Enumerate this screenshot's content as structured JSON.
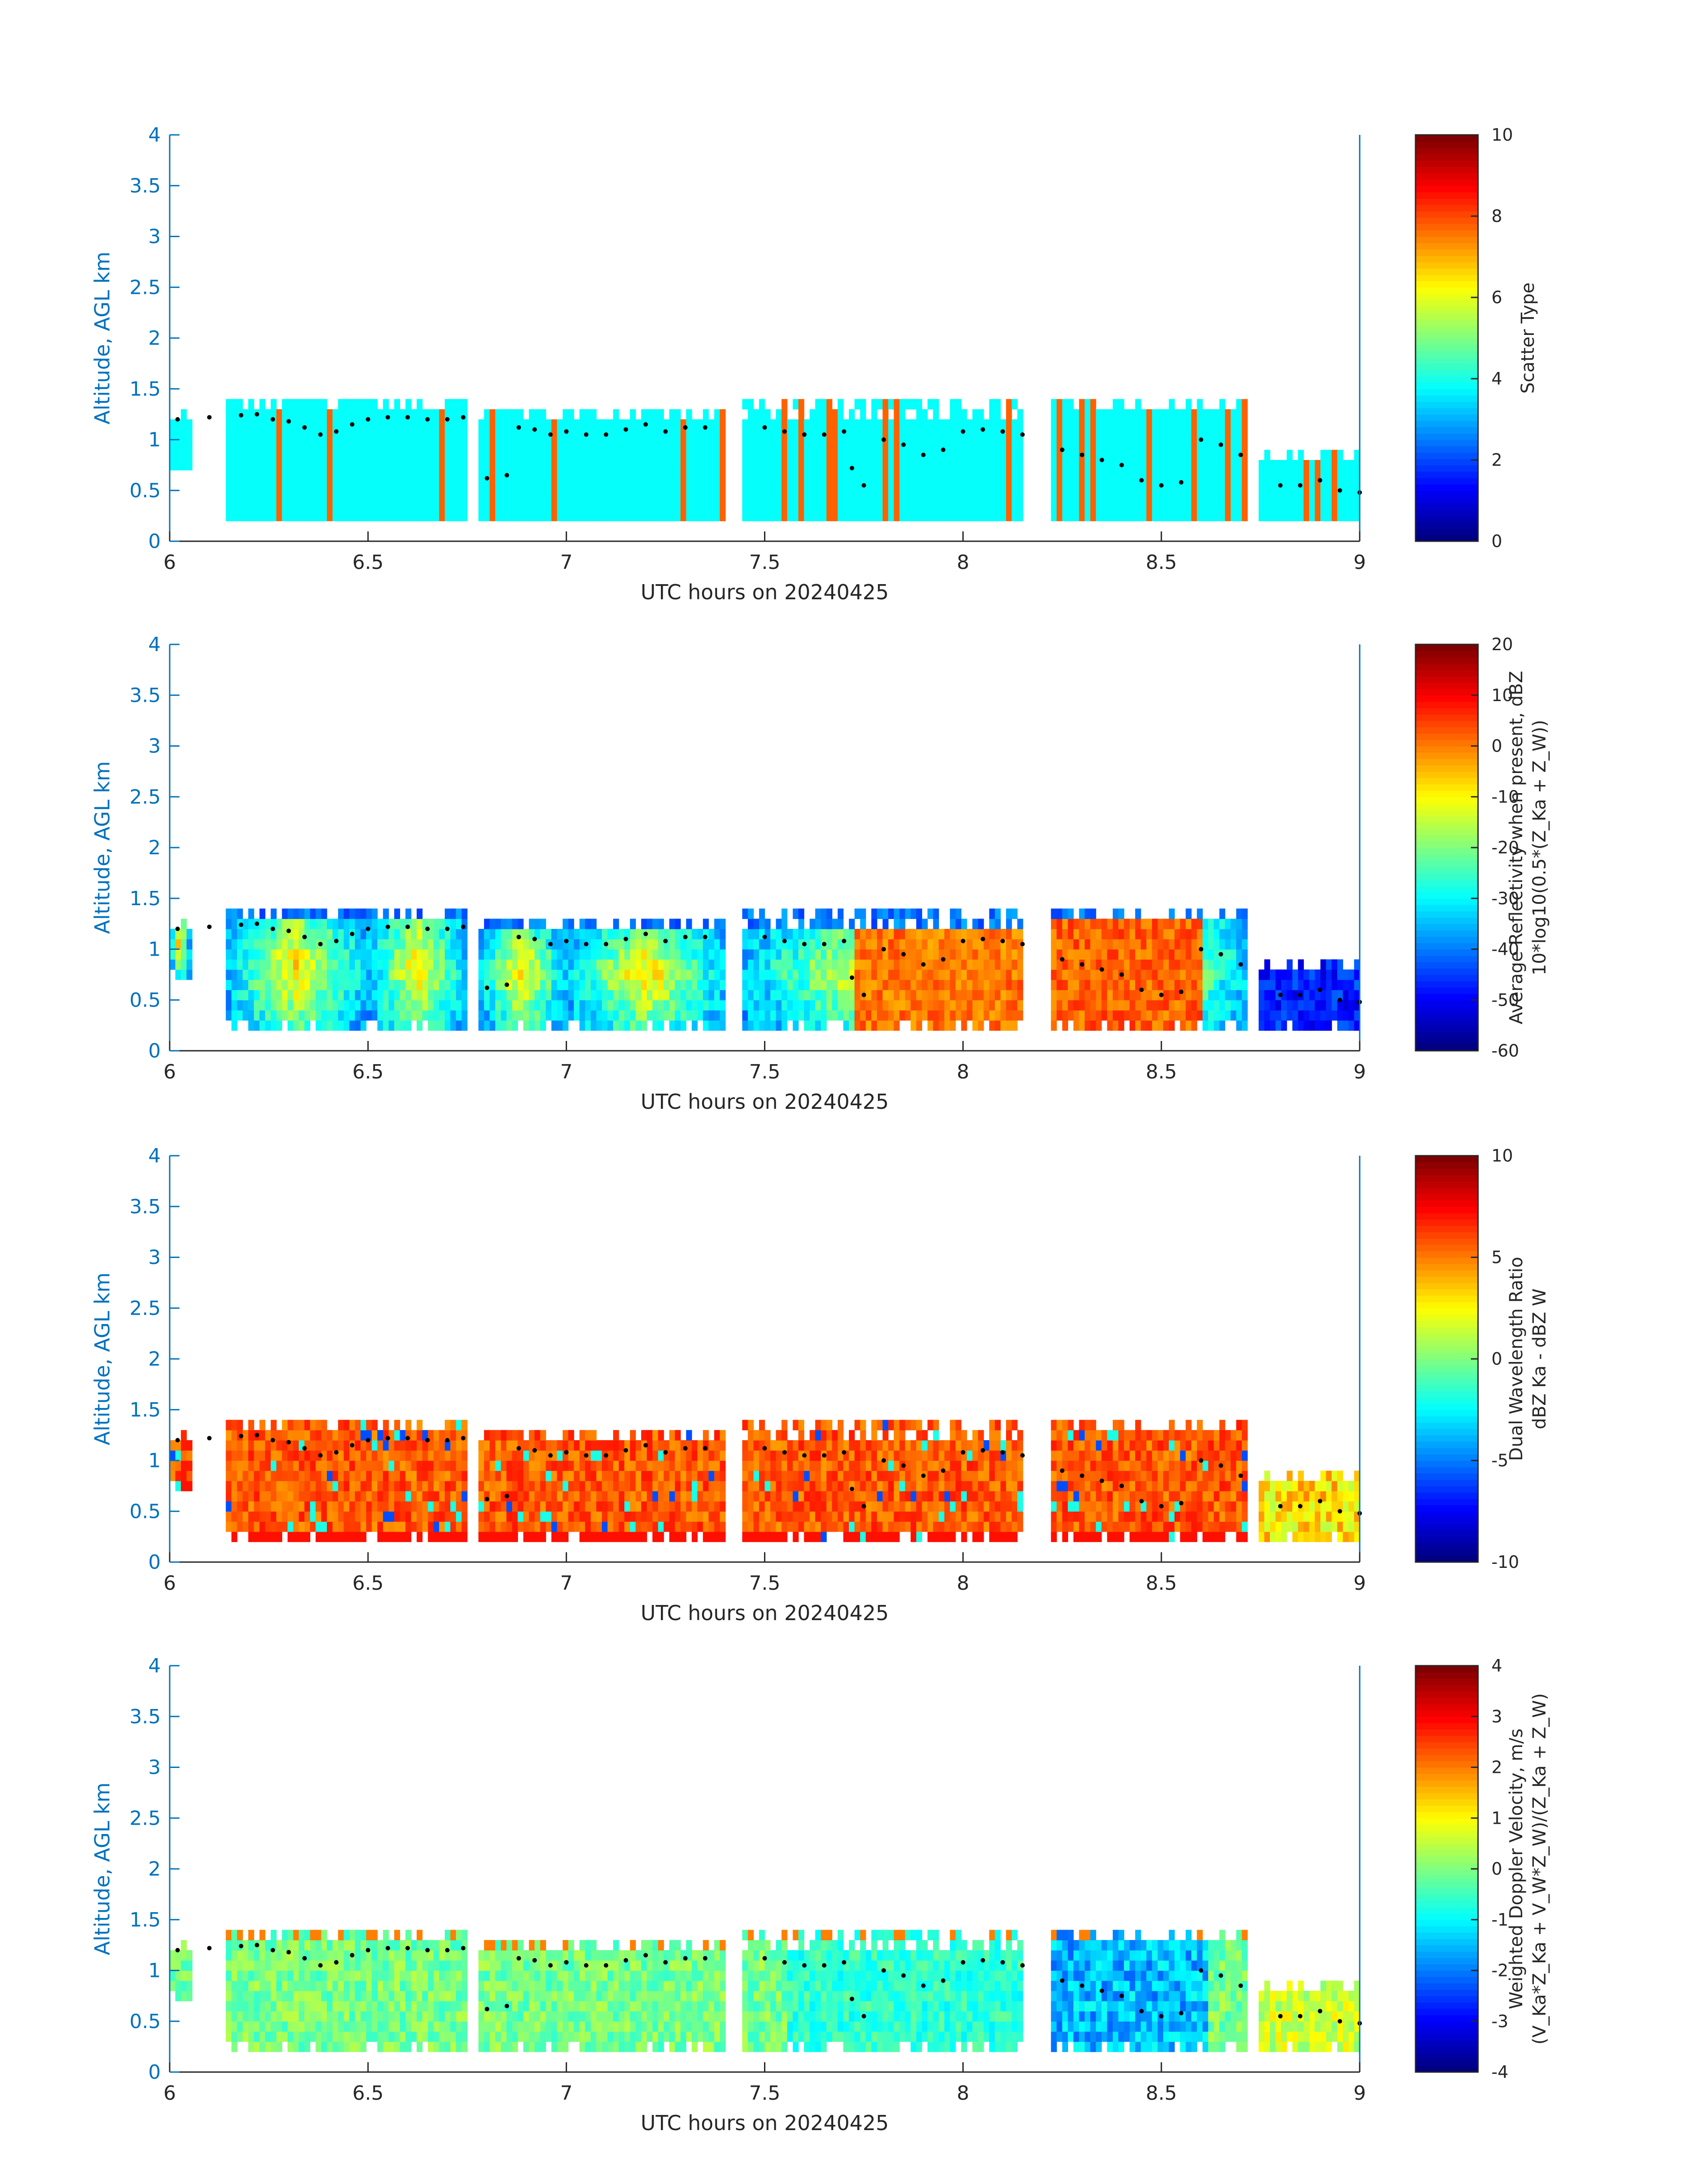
{
  "chart_data": [
    {
      "type": "heatmap",
      "panel": 1,
      "xlabel": "UTC hours on 20240425",
      "ylabel": "Altitude, AGL km",
      "xlim": [
        6,
        9
      ],
      "ylim": [
        0,
        4
      ],
      "xticks": [
        "6",
        "6.5",
        "7",
        "7.5",
        "8",
        "8.5",
        "9"
      ],
      "yticks": [
        "0",
        "0.5",
        "1",
        "1.5",
        "2",
        "2.5",
        "3",
        "3.5",
        "4"
      ],
      "colorbar": {
        "label_lines": [
          "Scatter Type"
        ],
        "range": [
          0,
          10
        ],
        "ticks": [
          "0",
          "2",
          "4",
          "6",
          "8",
          "10"
        ],
        "colormap": "jet"
      },
      "field": "scatter_type"
    },
    {
      "type": "heatmap",
      "panel": 2,
      "xlabel": "UTC hours on 20240425",
      "ylabel": "Altitude, AGL km",
      "xlim": [
        6,
        9
      ],
      "ylim": [
        0,
        4
      ],
      "xticks": [
        "6",
        "6.5",
        "7",
        "7.5",
        "8",
        "8.5",
        "9"
      ],
      "yticks": [
        "0",
        "0.5",
        "1",
        "1.5",
        "2",
        "2.5",
        "3",
        "3.5",
        "4"
      ],
      "colorbar": {
        "label_lines": [
          "Average Reflectivity when present, dBZ",
          "10*log10(0.5*(Z_Ka + Z_W))"
        ],
        "range": [
          -60,
          20
        ],
        "ticks": [
          "-60",
          "-50",
          "-40",
          "-30",
          "-20",
          "-10",
          "0",
          "10",
          "20"
        ],
        "colormap": "jet"
      },
      "field": "reflectivity"
    },
    {
      "type": "heatmap",
      "panel": 3,
      "xlabel": "UTC hours on 20240425",
      "ylabel": "Altitude, AGL km",
      "xlim": [
        6,
        9
      ],
      "ylim": [
        0,
        4
      ],
      "xticks": [
        "6",
        "6.5",
        "7",
        "7.5",
        "8",
        "8.5",
        "9"
      ],
      "yticks": [
        "0",
        "0.5",
        "1",
        "1.5",
        "2",
        "2.5",
        "3",
        "3.5",
        "4"
      ],
      "colorbar": {
        "label_lines": [
          "Dual Wavelength Ratio",
          "dBZ Ka - dBZ W"
        ],
        "range": [
          -10,
          10
        ],
        "ticks": [
          "-10",
          "-5",
          "0",
          "5",
          "10"
        ],
        "colormap": "jet"
      },
      "field": "dwr"
    },
    {
      "type": "heatmap",
      "panel": 4,
      "xlabel": "UTC hours on 20240425",
      "ylabel": "Altitude, AGL km",
      "xlim": [
        6,
        9
      ],
      "ylim": [
        0,
        4
      ],
      "xticks": [
        "6",
        "6.5",
        "7",
        "7.5",
        "8",
        "8.5",
        "9"
      ],
      "yticks": [
        "0",
        "0.5",
        "1",
        "1.5",
        "2",
        "2.5",
        "3",
        "3.5",
        "4"
      ],
      "colorbar": {
        "label_lines": [
          "Weighted Doppler Velocity, m/s",
          "(V_Ka*Z_Ka + V_W*Z_W)/(Z_Ka + Z_W)"
        ],
        "range": [
          -4,
          4
        ],
        "ticks": [
          "-4",
          "-3",
          "-2",
          "-1",
          "0",
          "1",
          "2",
          "3",
          "4"
        ],
        "colormap": "jet"
      },
      "field": "velocity"
    }
  ],
  "cloud_segments": [
    {
      "x0": 6.0,
      "x1": 6.05,
      "bottom": 0.75,
      "top": 1.35
    },
    {
      "x0": 6.14,
      "x1": 6.5,
      "bottom": 0.2,
      "top": 1.42
    },
    {
      "x0": 6.5,
      "x1": 6.75,
      "bottom": 0.2,
      "top": 1.42
    },
    {
      "x0": 6.78,
      "x1": 7.0,
      "bottom": 0.2,
      "top": 1.3
    },
    {
      "x0": 7.0,
      "x1": 7.4,
      "bottom": 0.2,
      "top": 1.3
    },
    {
      "x0": 7.45,
      "x1": 8.15,
      "bottom": 0.2,
      "top": 1.35
    },
    {
      "x0": 8.22,
      "x1": 8.72,
      "bottom": 0.2,
      "top": 1.42
    },
    {
      "x0": 8.75,
      "x1": 9.0,
      "bottom": 0.2,
      "top": 0.95
    }
  ],
  "cloud_top_dots": [
    [
      6.02,
      1.2
    ],
    [
      6.1,
      1.22
    ],
    [
      6.18,
      1.24
    ],
    [
      6.22,
      1.25
    ],
    [
      6.26,
      1.2
    ],
    [
      6.3,
      1.18
    ],
    [
      6.34,
      1.12
    ],
    [
      6.38,
      1.05
    ],
    [
      6.42,
      1.08
    ],
    [
      6.46,
      1.15
    ],
    [
      6.5,
      1.2
    ],
    [
      6.55,
      1.22
    ],
    [
      6.6,
      1.22
    ],
    [
      6.65,
      1.2
    ],
    [
      6.7,
      1.2
    ],
    [
      6.74,
      1.22
    ],
    [
      6.8,
      0.62
    ],
    [
      6.85,
      0.65
    ],
    [
      6.88,
      1.12
    ],
    [
      6.92,
      1.1
    ],
    [
      6.96,
      1.05
    ],
    [
      7.0,
      1.08
    ],
    [
      7.05,
      1.05
    ],
    [
      7.1,
      1.05
    ],
    [
      7.15,
      1.1
    ],
    [
      7.2,
      1.15
    ],
    [
      7.25,
      1.08
    ],
    [
      7.3,
      1.12
    ],
    [
      7.35,
      1.12
    ],
    [
      7.5,
      1.12
    ],
    [
      7.55,
      1.08
    ],
    [
      7.6,
      1.05
    ],
    [
      7.65,
      1.05
    ],
    [
      7.7,
      1.08
    ],
    [
      7.72,
      0.72
    ],
    [
      7.75,
      0.55
    ],
    [
      7.8,
      1.0
    ],
    [
      7.85,
      0.95
    ],
    [
      7.9,
      0.85
    ],
    [
      7.95,
      0.9
    ],
    [
      8.0,
      1.08
    ],
    [
      8.05,
      1.1
    ],
    [
      8.1,
      1.08
    ],
    [
      8.15,
      1.05
    ],
    [
      8.25,
      0.9
    ],
    [
      8.3,
      0.85
    ],
    [
      8.35,
      0.8
    ],
    [
      8.4,
      0.75
    ],
    [
      8.45,
      0.6
    ],
    [
      8.5,
      0.55
    ],
    [
      8.55,
      0.58
    ],
    [
      8.6,
      1.0
    ],
    [
      8.65,
      0.95
    ],
    [
      8.7,
      0.85
    ],
    [
      8.8,
      0.55
    ],
    [
      8.85,
      0.55
    ],
    [
      8.9,
      0.6
    ],
    [
      8.95,
      0.5
    ],
    [
      9.0,
      0.48
    ]
  ]
}
